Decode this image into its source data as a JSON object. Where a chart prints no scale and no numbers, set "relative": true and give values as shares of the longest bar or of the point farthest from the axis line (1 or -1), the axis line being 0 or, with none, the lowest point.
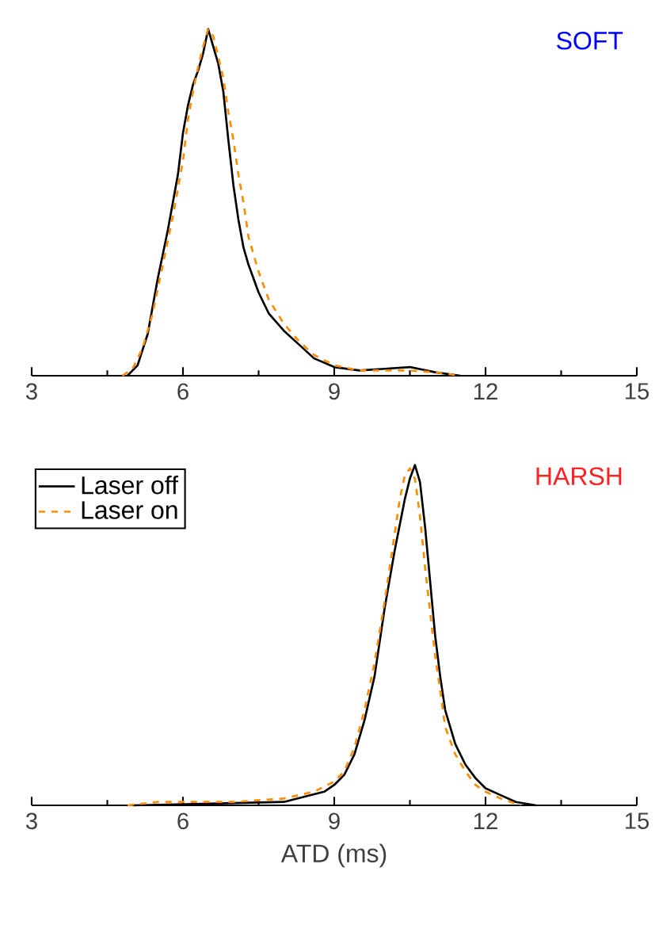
{
  "chart_data": [
    {
      "type": "line",
      "title": "SOFT",
      "relative": true,
      "xlim": [
        3,
        15
      ],
      "xticks": [
        3,
        6,
        9,
        12,
        15
      ],
      "tick_labels": "x",
      "legend": false,
      "series": [
        {
          "color": "#000000",
          "line_style": "solid",
          "x": [
            4.9,
            5.1,
            5.3,
            5.5,
            5.7,
            5.9,
            6.0,
            6.1,
            6.2,
            6.3,
            6.4,
            6.5,
            6.6,
            6.7,
            6.8,
            6.9,
            7.0,
            7.1,
            7.2,
            7.3,
            7.5,
            7.7,
            8.0,
            8.3,
            8.6,
            9.0,
            9.5,
            10.0,
            10.5,
            11.0,
            11.5
          ],
          "values": [
            0,
            0.03,
            0.12,
            0.28,
            0.42,
            0.58,
            0.7,
            0.78,
            0.84,
            0.88,
            0.93,
            1.0,
            0.95,
            0.9,
            0.82,
            0.68,
            0.55,
            0.45,
            0.37,
            0.32,
            0.24,
            0.18,
            0.13,
            0.09,
            0.05,
            0.025,
            0.015,
            0.02,
            0.025,
            0.01,
            0
          ]
        },
        {
          "color": "#ff8c00",
          "line_style": "dashed",
          "x": [
            4.8,
            5.0,
            5.2,
            5.4,
            5.6,
            5.8,
            6.0,
            6.1,
            6.2,
            6.3,
            6.4,
            6.5,
            6.6,
            6.7,
            6.8,
            6.9,
            7.0,
            7.1,
            7.2,
            7.3,
            7.5,
            7.7,
            8.0,
            8.3,
            8.6,
            9.0,
            9.5,
            10.0,
            10.5,
            11.0,
            11.5
          ],
          "values": [
            0,
            0.02,
            0.08,
            0.18,
            0.32,
            0.46,
            0.62,
            0.74,
            0.82,
            0.89,
            0.95,
            1.0,
            0.98,
            0.92,
            0.86,
            0.76,
            0.68,
            0.58,
            0.5,
            0.4,
            0.3,
            0.22,
            0.15,
            0.1,
            0.06,
            0.03,
            0.015,
            0.015,
            0.015,
            0.01,
            0
          ]
        }
      ]
    },
    {
      "type": "line",
      "title": "HARSH",
      "relative": true,
      "xlim": [
        3,
        15
      ],
      "xticks": [
        3,
        6,
        9,
        12,
        15
      ],
      "tick_labels": "x",
      "xlabel": "ATD (ms)",
      "legend": "top left",
      "series": [
        {
          "name": "Laser off",
          "color": "#000000",
          "line_style": "solid",
          "x": [
            5.0,
            8.0,
            8.8,
            9.0,
            9.2,
            9.4,
            9.6,
            9.8,
            10.0,
            10.2,
            10.4,
            10.5,
            10.6,
            10.7,
            10.8,
            10.9,
            11.0,
            11.1,
            11.2,
            11.4,
            11.6,
            11.8,
            12.0,
            12.3,
            12.6,
            13.0
          ],
          "values": [
            0,
            0.01,
            0.04,
            0.06,
            0.09,
            0.15,
            0.25,
            0.38,
            0.58,
            0.75,
            0.9,
            0.96,
            1.0,
            0.95,
            0.82,
            0.66,
            0.5,
            0.38,
            0.28,
            0.18,
            0.12,
            0.08,
            0.05,
            0.03,
            0.01,
            0
          ]
        },
        {
          "name": "Laser on",
          "color": "#ff8c00",
          "line_style": "dashed",
          "x": [
            4.9,
            5.5,
            7.0,
            8.0,
            8.6,
            9.0,
            9.2,
            9.4,
            9.6,
            9.8,
            10.0,
            10.2,
            10.3,
            10.4,
            10.5,
            10.6,
            10.7,
            10.8,
            10.9,
            11.0,
            11.1,
            11.2,
            11.4,
            11.6,
            11.8,
            12.0,
            12.3,
            12.7
          ],
          "values": [
            0,
            0.01,
            0.01,
            0.02,
            0.04,
            0.07,
            0.1,
            0.17,
            0.28,
            0.42,
            0.6,
            0.8,
            0.9,
            0.97,
            0.99,
            0.96,
            0.85,
            0.7,
            0.57,
            0.44,
            0.34,
            0.23,
            0.15,
            0.1,
            0.06,
            0.04,
            0.02,
            0
          ]
        }
      ]
    }
  ]
}
